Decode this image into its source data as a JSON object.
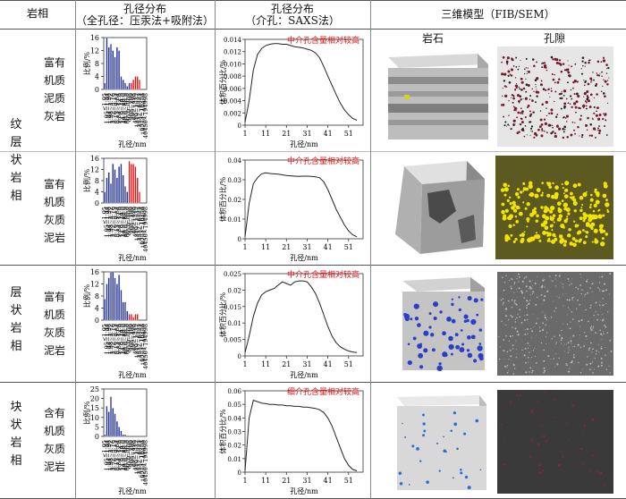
{
  "header": {
    "lithofacies": "岩相",
    "pore_dist_full_title": "孔径分布",
    "pore_dist_full_sub": "（全孔径：压汞法+吸附法）",
    "pore_dist_meso_title": "孔径分布",
    "pore_dist_meso_sub": "（介孔：SAXS法）",
    "model3d": "三维模型（FIB/SEM）",
    "rock_label": "岩石",
    "pore_label": "孔隙"
  },
  "rows": [
    {
      "facies": "纹层状岩相",
      "subtype": "富有机质泥质灰岩",
      "annotation": "中介孔含量相对较高"
    },
    {
      "facies": "",
      "subtype": "富有机质灰质泥岩",
      "annotation": "中介孔含量相对较高"
    },
    {
      "facies": "层状岩相",
      "subtype": "富有机质灰质泥岩",
      "annotation": "中介孔含量相对较高"
    },
    {
      "facies": "块状岩相",
      "subtype": "含有机质灰质泥岩",
      "annotation": "细介孔含量相对较高"
    }
  ],
  "axes": {
    "hist_ylabel": "比例/%",
    "hist_xlabel": "孔径/nm",
    "line_ylabel": "体积百分比/%",
    "line_xlabel": "孔径/nm"
  },
  "colors": {
    "blue": "#1f2f9a",
    "red": "#e01515",
    "annotation": "#e01515"
  },
  "chart_data": [
    {
      "type": "bar",
      "ylim": [
        0,
        16
      ],
      "yticks": [
        0,
        4,
        8,
        12,
        16
      ],
      "categories": [
        "<1.05",
        "1.05~1.44",
        "1.44~1.98",
        "1.98~2.72",
        "2.72~3.76",
        "3.76~5.15",
        "5.15~9.84",
        "9.84~12.6",
        "12.6~24.9",
        "24.9~40.0",
        "40.0~60.9",
        "60.9~80.0",
        "80.0~208",
        "208~299",
        "299~498",
        "498~1319",
        "1319~2532",
        "2532~6333",
        "6333~16254",
        "16254~40450",
        "40450~194998"
      ],
      "values": [
        2,
        16,
        13,
        14,
        12,
        10,
        13,
        12,
        4,
        3,
        2,
        1,
        2,
        2,
        3,
        4,
        4,
        3,
        0,
        0,
        0
      ],
      "colors": [
        "blue",
        "blue",
        "blue",
        "blue",
        "blue",
        "blue",
        "blue",
        "blue",
        "blue",
        "blue",
        "blue",
        "blue",
        "blue",
        "red",
        "red",
        "red",
        "red",
        "red",
        "blue",
        "blue",
        "blue"
      ],
      "ylabel": "比例/%",
      "xlabel": "孔径/nm"
    },
    {
      "type": "line",
      "x": [
        1,
        3,
        5,
        7,
        9,
        11,
        13,
        15,
        17,
        19,
        21,
        23,
        25,
        27,
        29,
        31,
        33,
        35,
        37,
        39,
        41,
        43,
        45,
        47,
        49,
        51,
        53,
        55
      ],
      "y": [
        0.0005,
        0.004,
        0.009,
        0.0115,
        0.0125,
        0.013,
        0.0132,
        0.0133,
        0.0133,
        0.0132,
        0.0132,
        0.013,
        0.0128,
        0.0127,
        0.0126,
        0.0124,
        0.0122,
        0.0118,
        0.011,
        0.0096,
        0.008,
        0.0065,
        0.005,
        0.0036,
        0.0025,
        0.0017,
        0.0011,
        0.0008
      ],
      "ylim": [
        0,
        0.014
      ],
      "yticks": [
        0,
        0.002,
        0.004,
        0.006,
        0.008,
        0.01,
        0.012,
        0.014
      ],
      "ytick_labels": [
        "0",
        "0.002",
        "0.004",
        "0.006",
        "0.008",
        "0.010",
        "0.012",
        "0.014"
      ],
      "xticks": [
        1,
        11,
        21,
        31,
        41,
        51
      ],
      "ylabel": "体积百分比/%",
      "xlabel": "孔径/nm"
    },
    {
      "type": "bar",
      "ylim": [
        0,
        16
      ],
      "yticks": [
        0,
        4,
        8,
        12,
        16
      ],
      "categories": [
        "<1.05",
        "1.05~1.44",
        "1.44~1.98",
        "1.98~2.72",
        "2.72~3.76",
        "3.76~5.15",
        "5.15~9.84",
        "9.84~12.6",
        "12.6~24.9",
        "24.9~40.0",
        "40.0~60.9",
        "60.9~80.0",
        "80.0~208",
        "208~299",
        "299~498",
        "498~1319",
        "1319~2532",
        "2532~6333",
        "6333~16254",
        "16254~40450",
        "40450~194998"
      ],
      "values": [
        4,
        9,
        11,
        7,
        14,
        12,
        9,
        13,
        14,
        10,
        6,
        4,
        15,
        14,
        14,
        13,
        9,
        4,
        0,
        0,
        0
      ],
      "colors": [
        "blue",
        "blue",
        "blue",
        "blue",
        "blue",
        "blue",
        "blue",
        "blue",
        "blue",
        "blue",
        "blue",
        "blue",
        "red",
        "red",
        "red",
        "red",
        "red",
        "red",
        "blue",
        "blue",
        "blue"
      ],
      "ylabel": "比例/%",
      "xlabel": "孔径/nm"
    },
    {
      "type": "line",
      "x": [
        1,
        3,
        5,
        7,
        9,
        11,
        13,
        15,
        17,
        19,
        21,
        23,
        25,
        27,
        29,
        31,
        33,
        35,
        37,
        39,
        41,
        43,
        45,
        47,
        49,
        51,
        53,
        55
      ],
      "y": [
        0.001,
        0.018,
        0.028,
        0.031,
        0.033,
        0.0335,
        0.0332,
        0.033,
        0.0328,
        0.0325,
        0.0322,
        0.032,
        0.0318,
        0.0317,
        0.0318,
        0.0318,
        0.0317,
        0.0315,
        0.031,
        0.029,
        0.025,
        0.02,
        0.015,
        0.011,
        0.007,
        0.004,
        0.002,
        0.001
      ],
      "ylim": [
        0,
        0.04
      ],
      "yticks": [
        0,
        0.01,
        0.02,
        0.03,
        0.04
      ],
      "ytick_labels": [
        "0",
        "0.01",
        "0.02",
        "0.03",
        "0.04"
      ],
      "xticks": [
        1,
        11,
        21,
        31,
        41,
        51
      ],
      "ylabel": "体积百分比/%",
      "xlabel": "孔径/nm"
    },
    {
      "type": "bar",
      "ylim": [
        0,
        16
      ],
      "yticks": [
        0,
        4,
        8,
        12,
        16
      ],
      "categories": [
        "<1.05",
        "1.05~1.44",
        "1.44~1.98",
        "1.98~2.72",
        "2.72~3.76",
        "3.76~5.15",
        "5.15~9.84",
        "9.84~12.6",
        "12.6~24.9",
        "24.9~40.0",
        "40.0~60.9",
        "60.9~80.0",
        "80.0~208",
        "208~299",
        "299~498",
        "498~1319",
        "1319~2532",
        "2532~6333",
        "6333~16254",
        "16254~40450",
        "40450~194998"
      ],
      "values": [
        7,
        12,
        14,
        16,
        16,
        14,
        12,
        15,
        10,
        6,
        6,
        3,
        2,
        2,
        1,
        2,
        2,
        0,
        0,
        0,
        0
      ],
      "colors": [
        "blue",
        "blue",
        "blue",
        "blue",
        "blue",
        "blue",
        "blue",
        "blue",
        "blue",
        "blue",
        "blue",
        "blue",
        "red",
        "red",
        "red",
        "red",
        "red",
        "blue",
        "blue",
        "blue",
        "blue"
      ],
      "ylabel": "比例/%",
      "xlabel": "孔径/nm"
    },
    {
      "type": "line",
      "x": [
        1,
        3,
        5,
        7,
        9,
        11,
        13,
        15,
        17,
        19,
        21,
        23,
        25,
        27,
        29,
        31,
        33,
        35,
        37,
        39,
        41,
        43,
        45,
        47,
        49,
        51,
        53,
        55
      ],
      "y": [
        0.001,
        0.006,
        0.012,
        0.016,
        0.0185,
        0.0195,
        0.02,
        0.0205,
        0.0215,
        0.0225,
        0.022,
        0.0215,
        0.0225,
        0.0228,
        0.0228,
        0.0225,
        0.021,
        0.019,
        0.016,
        0.0125,
        0.009,
        0.006,
        0.004,
        0.0028,
        0.002,
        0.0015,
        0.0012,
        0.001
      ],
      "ylim": [
        0,
        0.025
      ],
      "yticks": [
        0,
        0.005,
        0.01,
        0.015,
        0.02,
        0.025
      ],
      "ytick_labels": [
        "0",
        "0.005",
        "0.01",
        "0.015",
        "0.02",
        "0.025"
      ],
      "xticks": [
        1,
        11,
        21,
        31,
        41,
        51
      ],
      "ylabel": "体积百分比/%",
      "xlabel": "孔径/nm"
    },
    {
      "type": "bar",
      "ylim": [
        0,
        25
      ],
      "yticks": [
        0,
        5,
        10,
        15,
        20,
        25
      ],
      "categories": [
        "<1.05",
        "1.05~1.44",
        "1.44~1.98",
        "1.98~2.72",
        "2.72~3.76",
        "3.76~5.15",
        "5.15~9.84",
        "9.84~12.6",
        "12.6~24.9",
        "24.9~40.0",
        "40.0~60.9",
        "60.9~80.0",
        "80.0~208",
        "208~299",
        "299~498",
        "498~1319",
        "1319~2532",
        "2532~6333",
        "6333~16254",
        "16254~40450",
        "40450~194998"
      ],
      "values": [
        1,
        16,
        13,
        21,
        15,
        12,
        8,
        5,
        3,
        1,
        1,
        0,
        0,
        0,
        0,
        0,
        0,
        0,
        0,
        0,
        0
      ],
      "colors": [
        "blue",
        "blue",
        "blue",
        "blue",
        "blue",
        "blue",
        "blue",
        "blue",
        "blue",
        "blue",
        "blue",
        "blue",
        "blue",
        "blue",
        "blue",
        "blue",
        "blue",
        "blue",
        "blue",
        "blue",
        "blue"
      ],
      "ylabel": "比例/%",
      "xlabel": "孔径/nm"
    },
    {
      "type": "line",
      "x": [
        1,
        3,
        5,
        7,
        9,
        11,
        13,
        15,
        17,
        19,
        21,
        23,
        25,
        27,
        29,
        31,
        33,
        35,
        37,
        39,
        41,
        43,
        45,
        47,
        49,
        51,
        53,
        55
      ],
      "y": [
        0.001,
        0.04,
        0.053,
        0.052,
        0.051,
        0.0505,
        0.05,
        0.05,
        0.0495,
        0.0495,
        0.049,
        0.049,
        0.0485,
        0.0485,
        0.048,
        0.048,
        0.0475,
        0.047,
        0.046,
        0.044,
        0.04,
        0.034,
        0.026,
        0.018,
        0.01,
        0.005,
        0.002,
        0.001
      ],
      "ylim": [
        0,
        0.06
      ],
      "yticks": [
        0,
        0.01,
        0.02,
        0.03,
        0.04,
        0.05,
        0.06
      ],
      "ytick_labels": [
        "0",
        "0.01",
        "0.02",
        "0.03",
        "0.04",
        "0.05",
        "0.06"
      ],
      "xticks": [
        1,
        11,
        21,
        31,
        41,
        51
      ],
      "ylabel": "体积百分比/%",
      "xlabel": "孔径/nm"
    }
  ]
}
